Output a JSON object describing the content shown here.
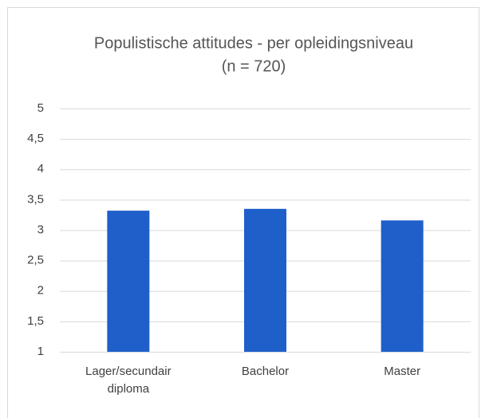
{
  "chart_data": {
    "type": "bar",
    "title": "Populistische attitudes - per opleidingsniveau",
    "subtitle": "(n = 720)",
    "categories": [
      "Lager/secundair diploma",
      "Bachelor",
      "Master"
    ],
    "values": [
      3.32,
      3.35,
      3.16
    ],
    "color": "#1f5fca",
    "ylim": [
      1,
      5
    ],
    "yticks": [
      1,
      {
        "value": 1.5,
        "label": "1,5"
      },
      2,
      {
        "value": 2.5,
        "label": "2,5"
      },
      3,
      {
        "value": 3.5,
        "label": "3,5"
      },
      4,
      {
        "value": 4.5,
        "label": "4,5"
      },
      5
    ],
    "grid": true
  }
}
